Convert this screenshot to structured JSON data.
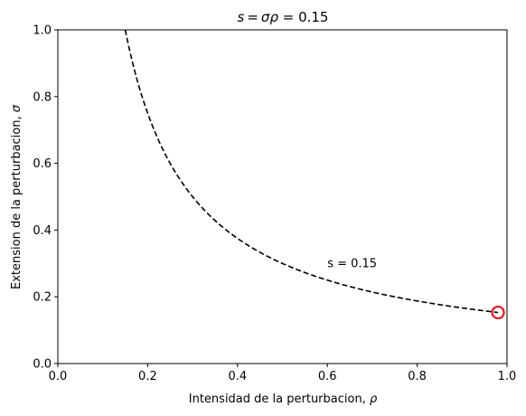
{
  "chart_data": {
    "type": "line",
    "title_parts": {
      "s": "s",
      "eq": "=",
      "sigma": "σ",
      "rho": "ρ",
      "rest": " = 0.15"
    },
    "xlabel_text": "Intensidad de la perturbacion, ",
    "xlabel_symbol": "ρ",
    "ylabel_text": "Extension de la perturbacion, ",
    "ylabel_symbol": "σ",
    "xlim": [
      0,
      1
    ],
    "ylim": [
      0,
      1
    ],
    "x_ticks": [
      0.0,
      0.2,
      0.4,
      0.6,
      0.8,
      1.0
    ],
    "y_ticks": [
      0.0,
      0.2,
      0.4,
      0.6,
      0.8,
      1.0
    ],
    "x_tick_labels": [
      "0.0",
      "0.2",
      "0.4",
      "0.6",
      "0.8",
      "1.0"
    ],
    "y_tick_labels": [
      "0.0",
      "0.2",
      "0.4",
      "0.6",
      "0.8",
      "1.0"
    ],
    "series": [
      {
        "style": "dashed",
        "color": "#000000",
        "function": "sigma = 0.15 / rho",
        "x_range": [
          0.15,
          0.98
        ]
      }
    ],
    "marker": {
      "x": 0.98,
      "y": 0.153,
      "shape": "open-circle",
      "color": "#e8141b"
    },
    "annotation": {
      "text": "s = 0.15",
      "x": 0.6,
      "y": 0.3
    },
    "grid": false
  }
}
